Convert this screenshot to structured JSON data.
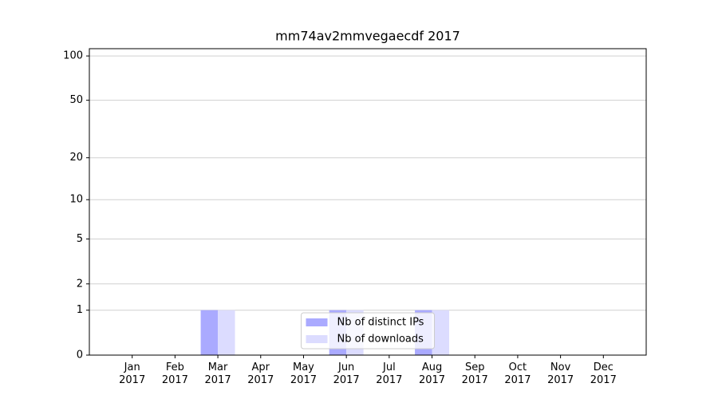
{
  "chart_data": {
    "type": "bar",
    "title": "mm74av2mmvegaecdf 2017",
    "categories": [
      "Jan\n2017",
      "Feb\n2017",
      "Mar\n2017",
      "Apr\n2017",
      "May\n2017",
      "Jun\n2017",
      "Jul\n2017",
      "Aug\n2017",
      "Sep\n2017",
      "Oct\n2017",
      "Nov\n2017",
      "Dec\n2017"
    ],
    "series": [
      {
        "name": "Nb of distinct IPs",
        "color": "#aaaaff",
        "values": [
          0,
          0,
          1,
          0,
          0,
          1,
          0,
          1,
          0,
          0,
          0,
          0
        ]
      },
      {
        "name": "Nb of downloads",
        "color": "#dcdcff",
        "values": [
          0,
          0,
          1,
          0,
          0,
          1,
          0,
          1,
          0,
          0,
          0,
          0
        ]
      }
    ],
    "yscale": "log1p",
    "ylim": [
      0,
      112
    ],
    "yticks": [
      0,
      1,
      2,
      5,
      10,
      20,
      50,
      100
    ],
    "grid": true,
    "legend": "lower center"
  }
}
